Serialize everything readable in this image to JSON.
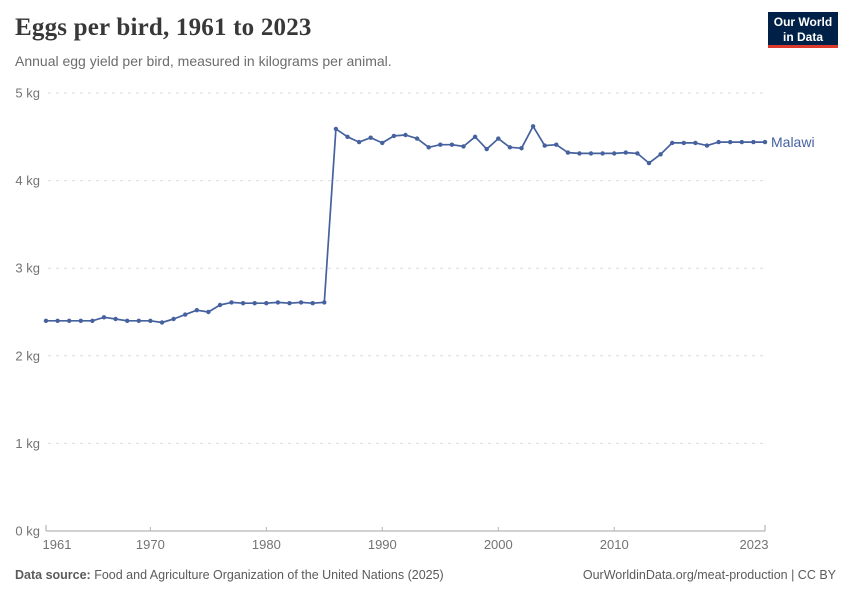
{
  "header": {
    "title": "Eggs per bird, 1961 to 2023",
    "subtitle": "Annual egg yield per bird, measured in kilograms per animal.",
    "logo": {
      "line1": "Our World",
      "line2": "in Data"
    }
  },
  "footer": {
    "source_label": "Data source:",
    "source_text": " Food and Agriculture Organization of the United Nations (2025)",
    "credit": "OurWorldinData.org/meat-production | CC BY"
  },
  "colors": {
    "series": "#45619e",
    "grid": "#dcdcdc",
    "axis": "#a6a6a6",
    "tick_text": "#737373",
    "logo_bg": "#002147",
    "logo_red": "#dc3a2c"
  },
  "chart_data": {
    "type": "line",
    "title": "Eggs per bird, 1961 to 2023",
    "subtitle": "Annual egg yield per bird, measured in kilograms per animal.",
    "xlabel": "",
    "ylabel": "kg",
    "xlim": [
      1961,
      2023
    ],
    "ylim": [
      0,
      5
    ],
    "grid": "horizontal-dashed",
    "legend_position": "end-of-line-label",
    "x_ticks": [
      1961,
      1970,
      1980,
      1990,
      2000,
      2010,
      2023
    ],
    "y_ticks": [
      {
        "value": 0,
        "label": "0 kg"
      },
      {
        "value": 1,
        "label": "1 kg"
      },
      {
        "value": 2,
        "label": "2 kg"
      },
      {
        "value": 3,
        "label": "3 kg"
      },
      {
        "value": 4,
        "label": "4 kg"
      },
      {
        "value": 5,
        "label": "5 kg"
      }
    ],
    "series": [
      {
        "name": "Malawi",
        "color": "#45619e",
        "x": [
          1961,
          1962,
          1963,
          1964,
          1965,
          1966,
          1967,
          1968,
          1969,
          1970,
          1971,
          1972,
          1973,
          1974,
          1975,
          1976,
          1977,
          1978,
          1979,
          1980,
          1981,
          1982,
          1983,
          1984,
          1985,
          1986,
          1987,
          1988,
          1989,
          1990,
          1991,
          1992,
          1993,
          1994,
          1995,
          1996,
          1997,
          1998,
          1999,
          2000,
          2001,
          2002,
          2003,
          2004,
          2005,
          2006,
          2007,
          2008,
          2009,
          2010,
          2011,
          2012,
          2013,
          2014,
          2015,
          2016,
          2017,
          2018,
          2019,
          2020,
          2021,
          2022,
          2023
        ],
        "values": [
          2.4,
          2.4,
          2.4,
          2.4,
          2.4,
          2.44,
          2.42,
          2.4,
          2.4,
          2.4,
          2.38,
          2.42,
          2.47,
          2.52,
          2.5,
          2.58,
          2.61,
          2.6,
          2.6,
          2.6,
          2.61,
          2.6,
          2.61,
          2.6,
          2.61,
          4.59,
          4.5,
          4.44,
          4.49,
          4.43,
          4.51,
          4.52,
          4.48,
          4.38,
          4.41,
          4.41,
          4.39,
          4.5,
          4.36,
          4.48,
          4.38,
          4.37,
          4.62,
          4.4,
          4.41,
          4.32,
          4.31,
          4.31,
          4.31,
          4.31,
          4.32,
          4.31,
          4.2,
          4.3,
          4.43,
          4.43,
          4.43,
          4.4,
          4.44,
          4.44,
          4.44,
          4.44,
          4.44
        ]
      }
    ]
  }
}
